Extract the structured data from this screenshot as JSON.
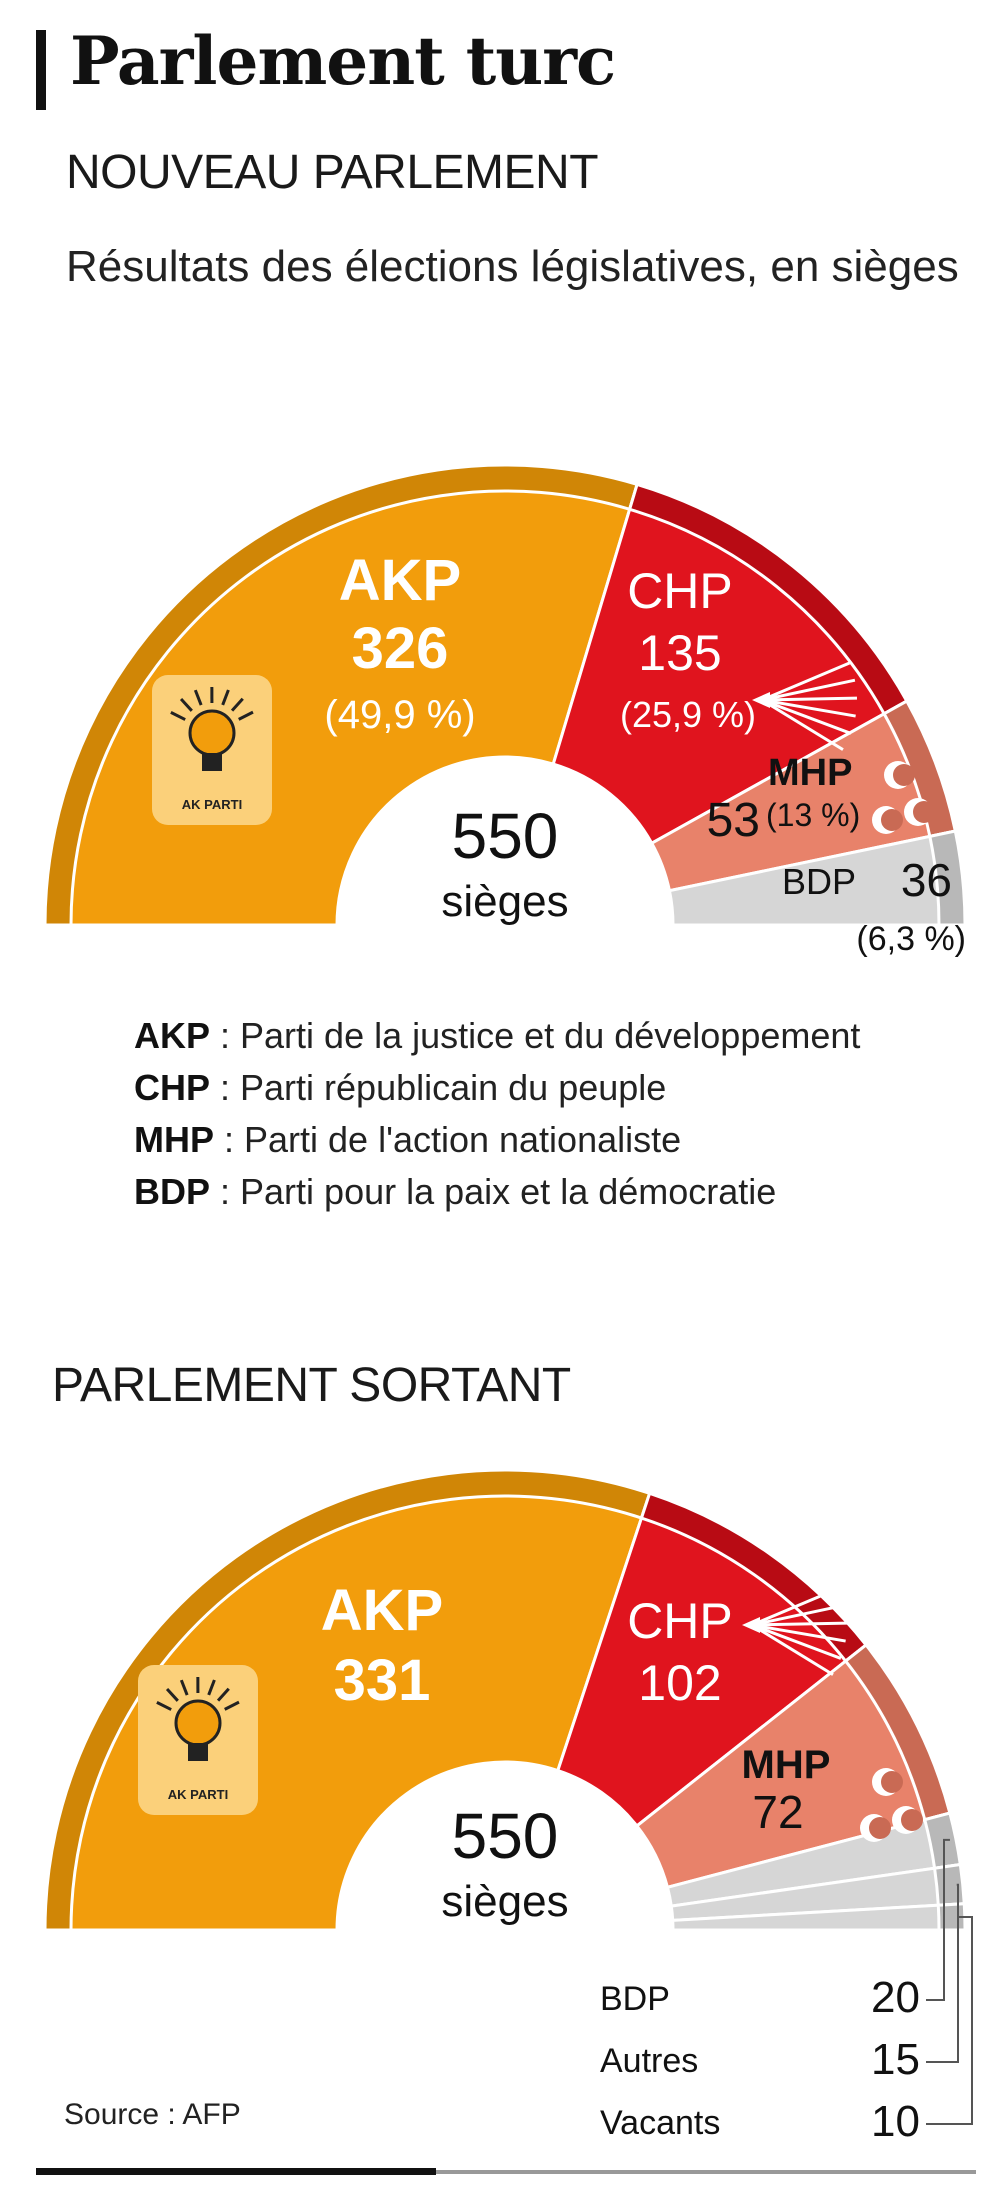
{
  "title": "Parlement turc",
  "source": "Source : AFP",
  "colors": {
    "AKP": "#f29d0c",
    "AKP_dark": "#d08606",
    "CHP": "#e0141e",
    "CHP_dark": "#b80b14",
    "MHP": "#e8826a",
    "MHP_dark": "#c96a54",
    "BDP": "#d6d6d6",
    "BDP_dark": "#b8b8b8",
    "logo_bg": "#fbd07a",
    "white": "#ffffff"
  },
  "icons": {
    "akp": "lightbulb-logo-icon",
    "chp": "six-arrows-icon",
    "mhp": "three-crescents-icon"
  },
  "new": {
    "heading": "NOUVEAU PARLEMENT",
    "subtitle": "Résultats des élections législatives, en sièges",
    "total_number": "550",
    "total_unit": "sièges",
    "logo_text": "AK PARTI",
    "labels": {
      "AKP": {
        "name": "AKP",
        "seats": "326",
        "pct": "(49,9 %)"
      },
      "CHP": {
        "name": "CHP",
        "seats": "135",
        "pct": "(25,9 %)"
      },
      "MHP": {
        "name": "MHP",
        "seats": "53",
        "pct": "(13 %)"
      },
      "BDP": {
        "name": "BDP",
        "seats": "36",
        "pct": "(6,3 %)"
      }
    }
  },
  "legend": [
    {
      "abbr": "AKP",
      "desc": " : Parti de la justice et du développement"
    },
    {
      "abbr": "CHP",
      "desc": " : Parti républicain du peuple"
    },
    {
      "abbr": "MHP",
      "desc": " : Parti de l'action nationaliste"
    },
    {
      "abbr": "BDP",
      "desc": " :  Parti pour la paix et  la démocratie"
    }
  ],
  "old": {
    "heading": "PARLEMENT SORTANT",
    "total_number": "550",
    "total_unit": "sièges",
    "logo_text": "AK PARTI",
    "labels": {
      "AKP": {
        "name": "AKP",
        "seats": "331"
      },
      "CHP": {
        "name": "CHP",
        "seats": "102"
      },
      "MHP": {
        "name": "MHP",
        "seats": "72"
      }
    },
    "small": [
      {
        "name": "BDP",
        "seats": "20"
      },
      {
        "name": "Autres",
        "seats": "15"
      },
      {
        "name": "Vacants",
        "seats": "10"
      }
    ]
  },
  "chart_data": [
    {
      "type": "pie",
      "style": "semicircle-parliament",
      "title": "NOUVEAU PARLEMENT",
      "subtitle": "Résultats des élections législatives, en sièges",
      "total": 550,
      "categories": [
        "AKP",
        "CHP",
        "MHP",
        "BDP"
      ],
      "values": [
        326,
        135,
        53,
        36
      ],
      "percentages": [
        49.9,
        25.9,
        13,
        6.3
      ]
    },
    {
      "type": "pie",
      "style": "semicircle-parliament",
      "title": "PARLEMENT SORTANT",
      "total": 550,
      "categories": [
        "AKP",
        "CHP",
        "MHP",
        "BDP",
        "Autres",
        "Vacants"
      ],
      "values": [
        331,
        102,
        72,
        20,
        15,
        10
      ]
    }
  ]
}
